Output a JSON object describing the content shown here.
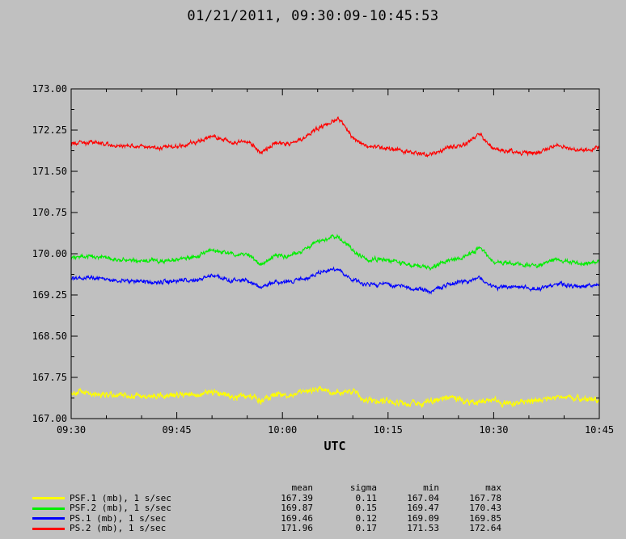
{
  "chart_data": {
    "type": "line",
    "title": "01/21/2011, 09:30:09-10:45:53",
    "xlabel": "UTC",
    "ylabel": "",
    "x_range_minutes": [
      0,
      75
    ],
    "ylim": [
      167.0,
      173.0
    ],
    "x_tick_labels": [
      "09:30",
      "09:45",
      "10:00",
      "10:15",
      "10:30",
      "10:45"
    ],
    "y_tick_values": [
      167.0,
      167.75,
      168.5,
      169.25,
      170.0,
      170.75,
      171.5,
      172.25,
      173.0
    ],
    "y_tick_labels": [
      "167.00",
      "167.75",
      "168.50",
      "169.25",
      "170.00",
      "170.75",
      "171.50",
      "172.25",
      "173.00"
    ],
    "grid": false,
    "series": [
      {
        "name": "PSF.1 (mb), 1 s/sec",
        "color": "#ffff00",
        "x": [
          0,
          3,
          6,
          9,
          12,
          15,
          18,
          20,
          23,
          25,
          27,
          29,
          31,
          33,
          35,
          38,
          40,
          42,
          45,
          48,
          51,
          54,
          56,
          58,
          60,
          63,
          66,
          69,
          72,
          75
        ],
        "values": [
          167.48,
          167.46,
          167.43,
          167.41,
          167.4,
          167.42,
          167.44,
          167.5,
          167.38,
          167.44,
          167.32,
          167.46,
          167.41,
          167.47,
          167.55,
          167.45,
          167.5,
          167.3,
          167.33,
          167.26,
          167.3,
          167.4,
          167.31,
          167.29,
          167.33,
          167.26,
          167.34,
          167.4,
          167.35,
          167.33
        ],
        "mean": "167.39",
        "sigma": "0.11",
        "min": "167.04",
        "max": "167.78"
      },
      {
        "name": "PSF.2 (mb), 1 s/sec",
        "color": "#00ee00",
        "x": [
          0,
          3,
          6,
          9,
          12,
          15,
          18,
          20,
          23,
          25,
          27,
          29,
          31,
          33,
          35,
          38,
          40,
          42,
          45,
          48,
          51,
          54,
          56,
          58,
          60,
          63,
          66,
          69,
          72,
          75
        ],
        "values": [
          169.93,
          169.96,
          169.9,
          169.88,
          169.87,
          169.89,
          169.96,
          170.08,
          169.98,
          170.0,
          169.8,
          169.97,
          169.95,
          170.06,
          170.22,
          170.3,
          170.05,
          169.9,
          169.88,
          169.8,
          169.75,
          169.88,
          169.95,
          170.1,
          169.85,
          169.82,
          169.78,
          169.9,
          169.82,
          169.85
        ],
        "mean": "169.87",
        "sigma": "0.15",
        "min": "169.47",
        "max": "170.43"
      },
      {
        "name": "PS.1 (mb), 1 s/sec",
        "color": "#0000ff",
        "x": [
          0,
          3,
          6,
          9,
          12,
          15,
          18,
          20,
          23,
          25,
          27,
          29,
          31,
          33,
          35,
          38,
          40,
          42,
          45,
          48,
          51,
          54,
          56,
          58,
          60,
          63,
          66,
          69,
          72,
          75
        ],
        "values": [
          169.55,
          169.57,
          169.51,
          169.5,
          169.48,
          169.5,
          169.52,
          169.62,
          169.5,
          169.52,
          169.38,
          169.5,
          169.48,
          169.54,
          169.65,
          169.72,
          169.52,
          169.45,
          169.43,
          169.38,
          169.32,
          169.45,
          169.5,
          169.55,
          169.4,
          169.4,
          169.36,
          169.45,
          169.4,
          169.43
        ],
        "mean": "169.46",
        "sigma": "0.12",
        "min": "169.09",
        "max": "169.85"
      },
      {
        "name": "PS.2 (mb), 1 s/sec",
        "color": "#ff0000",
        "x": [
          0,
          3,
          6,
          9,
          12,
          15,
          18,
          20,
          23,
          25,
          27,
          29,
          31,
          33,
          35,
          38,
          40,
          42,
          45,
          48,
          51,
          54,
          56,
          58,
          60,
          63,
          66,
          69,
          72,
          75
        ],
        "values": [
          172.0,
          172.03,
          171.96,
          171.95,
          171.93,
          171.96,
          172.03,
          172.15,
          172.02,
          172.05,
          171.85,
          172.02,
          172.0,
          172.1,
          172.28,
          172.45,
          172.1,
          171.95,
          171.92,
          171.85,
          171.8,
          171.95,
          172.0,
          172.18,
          171.9,
          171.86,
          171.82,
          171.98,
          171.88,
          171.92
        ],
        "mean": "171.96",
        "sigma": "0.17",
        "min": "171.53",
        "max": "172.64"
      }
    ]
  },
  "stats_headers": {
    "mean": "mean",
    "sigma": "sigma",
    "min": "min",
    "max": "max"
  }
}
